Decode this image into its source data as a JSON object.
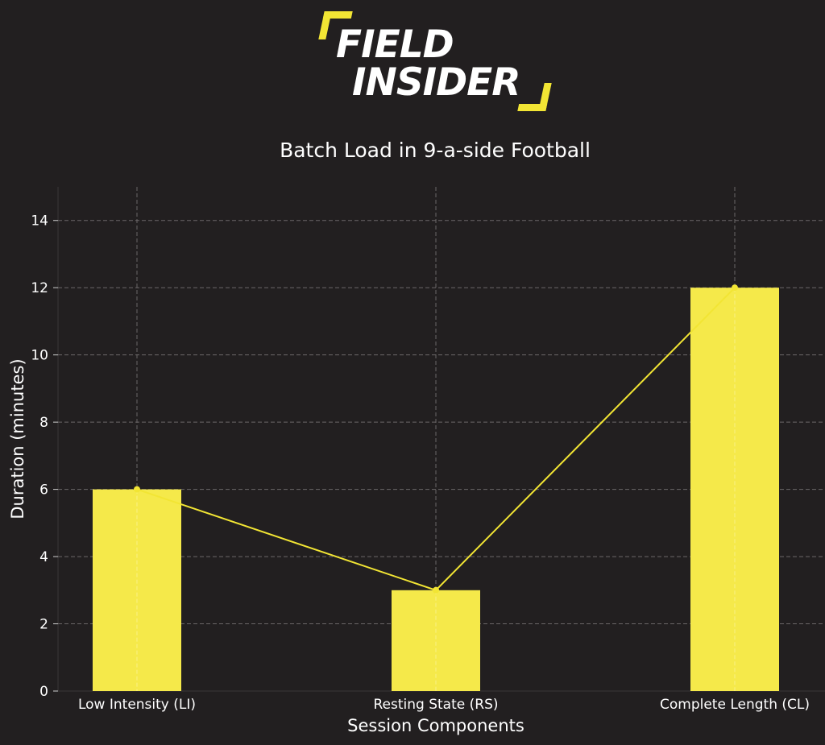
{
  "logo": {
    "line1": "FIELD",
    "line2": "INSIDER",
    "accent_color": "#f2e534"
  },
  "chart_data": {
    "type": "bar",
    "title": "Batch Load in 9-a-side Football",
    "xlabel": "Session Components",
    "ylabel": "Duration (minutes)",
    "categories": [
      "Low Intensity (LI)",
      "Resting State (RS)",
      "Complete Length (CL)"
    ],
    "values": [
      6,
      3,
      12
    ],
    "line_overlay": true,
    "ylim": [
      0,
      15
    ],
    "yticks": [
      0,
      2,
      4,
      6,
      8,
      10,
      12,
      14
    ],
    "grid": true,
    "bar_color": "#f5e94a",
    "line_color": "#f2e534",
    "background": "#221f20"
  }
}
